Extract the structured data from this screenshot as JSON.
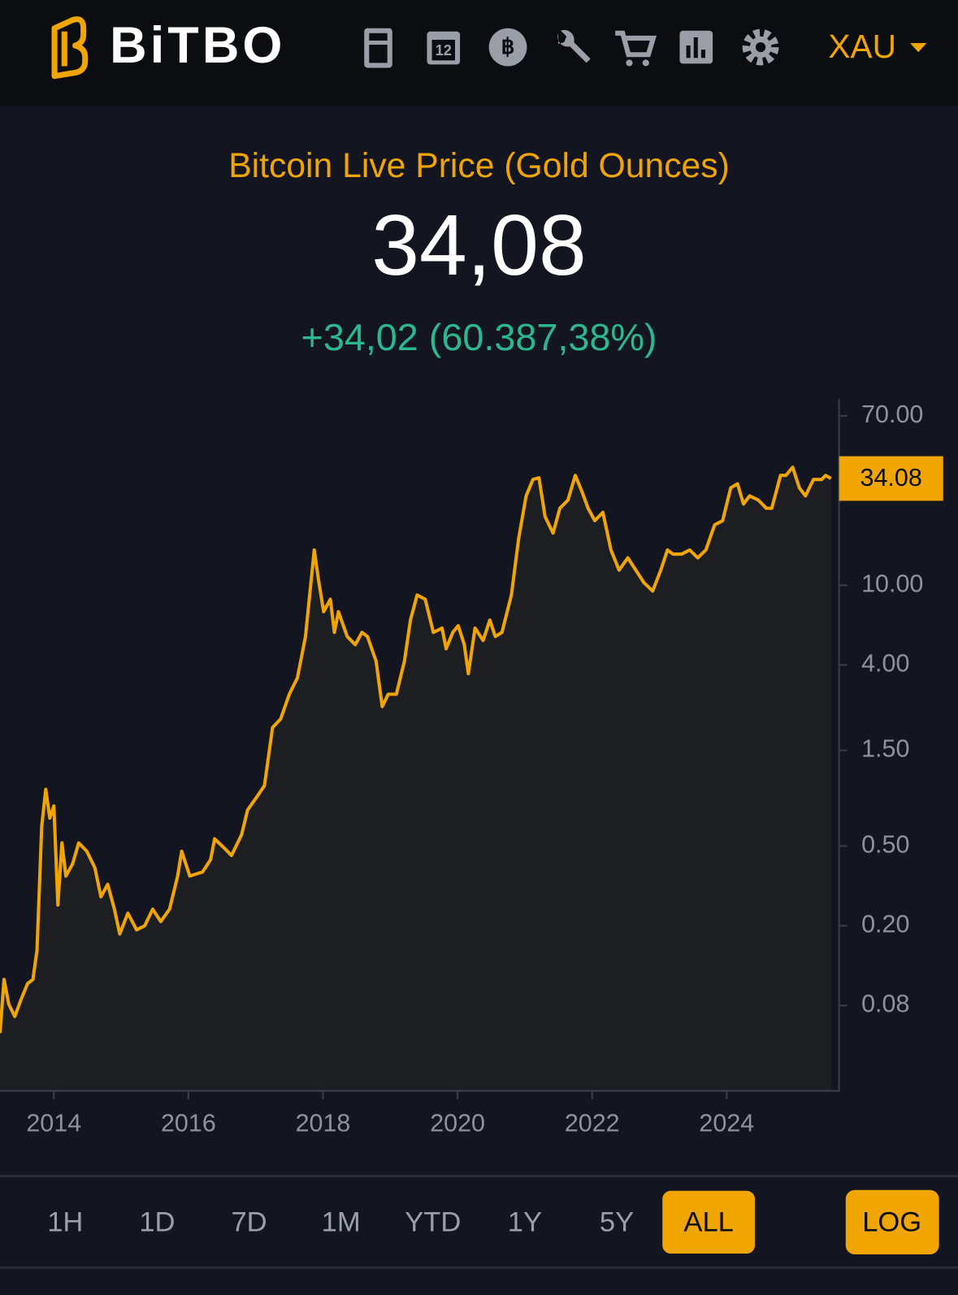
{
  "header": {
    "brand": "BiTBO",
    "calendar_day": "12",
    "currency": "XAU"
  },
  "price": {
    "title": "Bitcoin Live Price (Gold Ounces)",
    "value": "34,08",
    "change": "+34,02 (60.387,38%)"
  },
  "chart_data": {
    "type": "line",
    "log": true,
    "color": "#f0a500",
    "x": [
      2013.2,
      2013.26,
      2013.33,
      2013.42,
      2013.51,
      2013.61,
      2013.69,
      2013.75,
      2013.82,
      2013.88,
      2013.94,
      2014.0,
      2014.06,
      2014.12,
      2014.18,
      2014.28,
      2014.37,
      2014.49,
      2014.61,
      2014.7,
      2014.8,
      2014.9,
      2014.98,
      2015.1,
      2015.23,
      2015.35,
      2015.47,
      2015.59,
      2015.72,
      2015.84,
      2015.9,
      2016.02,
      2016.21,
      2016.33,
      2016.39,
      2016.52,
      2016.64,
      2016.79,
      2016.88,
      2017.01,
      2017.13,
      2017.25,
      2017.37,
      2017.5,
      2017.62,
      2017.74,
      2017.87,
      2017.93,
      2018.01,
      2018.11,
      2018.17,
      2018.23,
      2018.36,
      2018.48,
      2018.58,
      2018.66,
      2018.79,
      2018.88,
      2018.97,
      2019.09,
      2019.21,
      2019.3,
      2019.4,
      2019.52,
      2019.64,
      2019.77,
      2019.83,
      2019.93,
      2020.01,
      2020.1,
      2020.16,
      2020.26,
      2020.38,
      2020.48,
      2020.56,
      2020.66,
      2020.8,
      2020.91,
      2021.02,
      2021.12,
      2021.21,
      2021.3,
      2021.42,
      2021.52,
      2021.64,
      2021.75,
      2021.85,
      2021.94,
      2022.04,
      2022.16,
      2022.28,
      2022.4,
      2022.53,
      2022.65,
      2022.77,
      2022.9,
      2023.02,
      2023.12,
      2023.2,
      2023.33,
      2023.45,
      2023.57,
      2023.69,
      2023.82,
      2023.94,
      2024.06,
      2024.16,
      2024.25,
      2024.34,
      2024.47,
      2024.59,
      2024.67,
      2024.8,
      2024.88,
      2024.98,
      2025.08,
      2025.17,
      2025.29,
      2025.41,
      2025.47,
      2025.55
    ],
    "values": [
      0.0583,
      0.108,
      0.0813,
      0.0705,
      0.0853,
      0.103,
      0.108,
      0.151,
      0.625,
      0.959,
      0.689,
      0.793,
      0.254,
      0.518,
      0.354,
      0.408,
      0.518,
      0.471,
      0.389,
      0.279,
      0.322,
      0.242,
      0.182,
      0.231,
      0.191,
      0.2,
      0.242,
      0.21,
      0.242,
      0.354,
      0.471,
      0.354,
      0.371,
      0.428,
      0.543,
      0.493,
      0.449,
      0.569,
      0.757,
      0.873,
      1.0,
      1.95,
      2.15,
      2.86,
      3.45,
      5.55,
      15.0,
      10.8,
      7.38,
      8.51,
      5.82,
      7.38,
      5.55,
      5.05,
      5.82,
      5.55,
      4.18,
      2.48,
      2.86,
      2.86,
      4.18,
      6.71,
      8.93,
      8.51,
      5.82,
      6.11,
      4.82,
      5.82,
      6.28,
      5.05,
      3.62,
      6.11,
      5.3,
      6.71,
      5.55,
      5.82,
      8.93,
      17.3,
      27.9,
      33.7,
      34.4,
      22.0,
      18.2,
      24.2,
      26.6,
      35.3,
      29.2,
      24.2,
      21.0,
      23.1,
      15.0,
      11.9,
      13.7,
      11.9,
      10.3,
      9.36,
      11.9,
      15.0,
      14.3,
      14.3,
      15.0,
      13.7,
      15.0,
      20.0,
      21.0,
      30.6,
      32.1,
      25.4,
      27.9,
      26.6,
      24.2,
      24.2,
      35.3,
      35.3,
      38.8,
      30.6,
      27.9,
      33.7,
      33.7,
      35.3,
      34.08
    ],
    "xlim": [
      2013.2,
      2025.67
    ],
    "xticks": [
      2014,
      2016,
      2018,
      2020,
      2022,
      2024
    ],
    "ylim": [
      0.03,
      85
    ],
    "yticks": [
      {
        "value": 70,
        "label": "70.00"
      },
      {
        "value": 10,
        "label": "10.00"
      },
      {
        "value": 4,
        "label": "4.00"
      },
      {
        "value": 1.5,
        "label": "1.50"
      },
      {
        "value": 0.5,
        "label": "0.50"
      },
      {
        "value": 0.2,
        "label": "0.20"
      },
      {
        "value": 0.08,
        "label": "0.08"
      }
    ]
  },
  "controls": {
    "ranges": [
      "1H",
      "1D",
      "7D",
      "1M",
      "YTD",
      "1Y",
      "5Y",
      "ALL"
    ],
    "selected": 7,
    "log_label": "LOG"
  }
}
